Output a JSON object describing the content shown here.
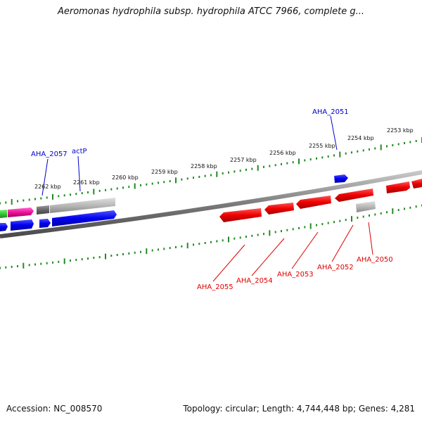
{
  "title": "Aeromonas hydrophila subsp. hydrophila ATCC 7966, complete g...",
  "footer": {
    "accession": "Accession: NC_008570",
    "summary": "Topology: circular; Length: 4,744,448 bp; Genes: 4,281"
  },
  "colors": {
    "backbone": "#7a7a7a",
    "ruler": "#228b22",
    "forward_label": "#0000cc",
    "reverse_label": "#dd0000",
    "blue_feature": "#0a0af0",
    "red_feature": "#ee0000",
    "gray_feature": "#b8b8b8",
    "pink_feature": "#ee1199",
    "green_feature": "#33cc33"
  },
  "ruler_labels": [
    "2262 kbp",
    "2261 kbp",
    "2260 kbp",
    "2259 kbp",
    "2258 kbp",
    "2257 kbp",
    "2256 kbp",
    "2255 kbp",
    "2254 kbp",
    "2253 kbp"
  ],
  "forward_labels": [
    "AHA_2057",
    "actP",
    "AHA_2051"
  ],
  "reverse_labels": [
    "AHA_2055",
    "AHA_2054",
    "AHA_2053",
    "AHA_2052",
    "AHA_2050"
  ]
}
